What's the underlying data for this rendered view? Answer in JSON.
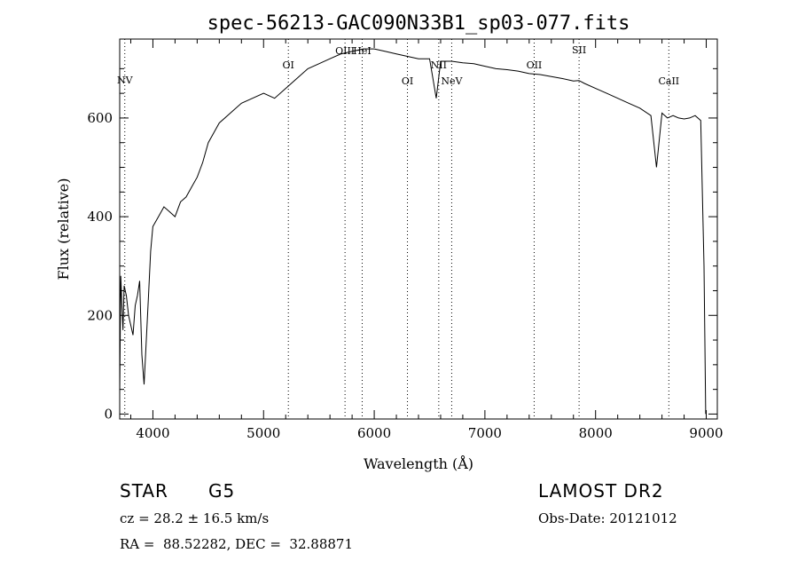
{
  "chart_data": {
    "type": "line",
    "title": "spec-56213-GAC090N33B1_sp03-077.fits",
    "xlabel": "Wavelength (Å)",
    "ylabel": "Flux (relative)",
    "xlim": [
      3700,
      9100
    ],
    "ylim": [
      -10,
      760
    ],
    "x_ticks": [
      4000,
      5000,
      6000,
      7000,
      8000,
      9000
    ],
    "y_ticks": [
      0,
      200,
      400,
      600
    ],
    "grid": false,
    "series": [
      {
        "x": [
          3700,
          3710,
          3720,
          3730,
          3740,
          3760,
          3780,
          3800,
          3820,
          3840,
          3860,
          3880,
          3900,
          3920,
          3940,
          3960,
          3980,
          4000,
          4050,
          4100,
          4150,
          4200,
          4250,
          4300,
          4350,
          4400,
          4450,
          4500,
          4550,
          4600,
          4700,
          4800,
          4900,
          5000,
          5100,
          5200,
          5300,
          5400,
          5500,
          5600,
          5700,
          5800,
          5900,
          6000,
          6100,
          6200,
          6300,
          6400,
          6500,
          6560,
          6600,
          6700,
          6800,
          6900,
          7000,
          7100,
          7200,
          7300,
          7400,
          7500,
          7600,
          7700,
          7800,
          7850,
          7900,
          8000,
          8100,
          8200,
          8300,
          8400,
          8500,
          8550,
          8600,
          8650,
          8700,
          8750,
          8800,
          8850,
          8900,
          8950,
          8980,
          8995
        ],
        "y": [
          40,
          280,
          220,
          170,
          260,
          240,
          200,
          180,
          160,
          220,
          240,
          270,
          120,
          60,
          150,
          240,
          330,
          380,
          400,
          420,
          410,
          400,
          430,
          440,
          460,
          480,
          510,
          550,
          570,
          590,
          610,
          630,
          640,
          650,
          640,
          660,
          680,
          700,
          710,
          720,
          730,
          735,
          740,
          740,
          735,
          730,
          725,
          720,
          720,
          640,
          715,
          715,
          712,
          710,
          705,
          700,
          698,
          695,
          690,
          688,
          684,
          680,
          675,
          676,
          670,
          660,
          650,
          640,
          630,
          620,
          605,
          500,
          610,
          600,
          605,
          600,
          598,
          600,
          605,
          595,
          300,
          0
        ]
      }
    ],
    "line_annotations": [
      {
        "label": "NV",
        "x": 3746
      },
      {
        "label": "OI",
        "x": 5224
      },
      {
        "label": "OIII",
        "x": 5736
      },
      {
        "label": "HeI",
        "x": 5891
      },
      {
        "label": "OI",
        "x": 6300
      },
      {
        "label": "NII",
        "x": 6583
      },
      {
        "label": "NeV",
        "x": 6700
      },
      {
        "label": "OII",
        "x": 7445
      },
      {
        "label": "SII",
        "x": 7851
      },
      {
        "label": "CaII",
        "x": 8662
      }
    ]
  },
  "info": {
    "object_class": "STAR",
    "subclass": "G5",
    "survey": "LAMOST DR2",
    "redshift": "cz = 28.2 ± 16.5 km/s",
    "obs_date": "Obs-Date: 20121012",
    "coords": "RA =  88.52282, DEC =  32.88871"
  }
}
